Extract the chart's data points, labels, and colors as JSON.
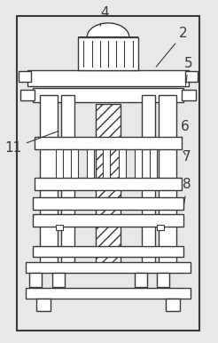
{
  "bg_color": "#e8e8e8",
  "line_color": "#3a3a3a",
  "label_fontsize": 11,
  "figsize": [
    2.46,
    3.86
  ],
  "dpi": 100
}
